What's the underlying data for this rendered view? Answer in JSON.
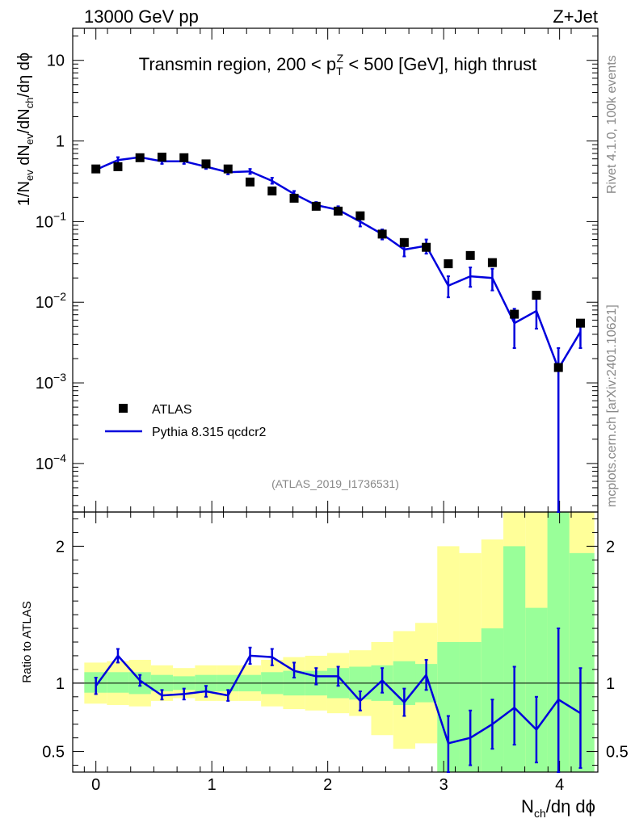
{
  "header": {
    "left": "13000 GeV pp",
    "right": "Z+Jet"
  },
  "side": {
    "rivet": "Rivet 4.1.0,  100k events",
    "mcplots": "mcplots.cern.ch [arXiv:2401.10621]"
  },
  "chart_data": {
    "type": "scatter",
    "title_prefix": "Transmin region, 200 < p",
    "title_sup": "Z",
    "title_sub": "T",
    "title_suffix": " < 500 [GeV], high thrust",
    "analysis_id": "(ATLAS_2019_I1736531)",
    "ylabel_parts": [
      "1/N",
      "ev",
      " dN",
      "ev",
      "/dN",
      "ch",
      "/dη dϕ"
    ],
    "xlabel_parts": [
      "N",
      "ch",
      "/dη dϕ"
    ],
    "ratio_ylabel": "Ratio to ATLAS",
    "xlim": [
      -0.2,
      4.33
    ],
    "ylim_main": [
      2.5e-05,
      25
    ],
    "ylim_ratio": [
      0.35,
      2.25
    ],
    "x_ticks": [
      "0",
      "1",
      "2",
      "3",
      "4"
    ],
    "y_ticks_main": [
      {
        "value": 10,
        "base": "10",
        "exp": ""
      },
      {
        "value": 1,
        "base": "1",
        "exp": ""
      },
      {
        "value": 0.1,
        "base": "10",
        "exp": "−1"
      },
      {
        "value": 0.01,
        "base": "10",
        "exp": "−2"
      },
      {
        "value": 0.001,
        "base": "10",
        "exp": "−3"
      },
      {
        "value": 0.0001,
        "base": "10",
        "exp": "−4"
      }
    ],
    "y_ticks_ratio": [
      "0.5",
      "1",
      "2"
    ],
    "legend": [
      "ATLAS",
      "Pythia 8.315 qcdcr2"
    ],
    "x": [
      0.0,
      0.19,
      0.38,
      0.57,
      0.76,
      0.95,
      1.14,
      1.33,
      1.52,
      1.71,
      1.9,
      2.09,
      2.28,
      2.47,
      2.66,
      2.85,
      3.04,
      3.23,
      3.42,
      3.61,
      3.8,
      3.99,
      4.18
    ],
    "series": [
      {
        "name": "ATLAS",
        "values": [
          0.45,
          0.48,
          0.62,
          0.63,
          0.62,
          0.52,
          0.45,
          0.31,
          0.24,
          0.195,
          0.155,
          0.135,
          0.118,
          0.07,
          0.055,
          0.048,
          0.03,
          0.038,
          0.031,
          0.0071,
          0.0122,
          0.00155,
          0.0055
        ]
      },
      {
        "name": "Pythia 8.315 qcdcr2",
        "values": [
          0.44,
          0.58,
          0.63,
          0.56,
          0.56,
          0.48,
          0.41,
          0.42,
          0.32,
          0.22,
          0.16,
          0.14,
          0.1,
          0.07,
          0.045,
          0.05,
          0.016,
          0.021,
          0.02,
          0.0055,
          0.0078,
          0.0015,
          0.0043
        ],
        "err_low": [
          0.41,
          0.53,
          0.59,
          0.52,
          0.52,
          0.45,
          0.385,
          0.39,
          0.295,
          0.2,
          0.145,
          0.125,
          0.087,
          0.06,
          0.037,
          0.04,
          0.0115,
          0.0155,
          0.014,
          0.0027,
          0.0047,
          2e-05,
          0.0027
        ],
        "err_high": [
          0.47,
          0.63,
          0.67,
          0.6,
          0.6,
          0.51,
          0.435,
          0.45,
          0.35,
          0.24,
          0.175,
          0.155,
          0.113,
          0.08,
          0.053,
          0.06,
          0.021,
          0.027,
          0.026,
          0.0083,
          0.0112,
          0.0027,
          0.0059
        ]
      }
    ],
    "ratio": {
      "values": [
        0.98,
        1.2,
        1.02,
        0.91,
        0.92,
        0.94,
        0.91,
        1.2,
        1.19,
        1.09,
        1.05,
        1.05,
        0.87,
        1.02,
        0.86,
        1.06,
        0.56,
        0.6,
        0.7,
        0.82,
        0.66,
        0.88,
        0.78
      ],
      "err_low": [
        0.92,
        1.15,
        0.98,
        0.88,
        0.88,
        0.9,
        0.87,
        1.14,
        1.13,
        1.04,
        0.99,
        0.98,
        0.8,
        0.93,
        0.76,
        0.95,
        0.35,
        0.4,
        0.52,
        0.55,
        0.42,
        0.35,
        0.38
      ],
      "err_high": [
        1.04,
        1.25,
        1.06,
        0.95,
        0.96,
        0.98,
        0.95,
        1.26,
        1.25,
        1.15,
        1.11,
        1.12,
        0.94,
        1.11,
        0.96,
        1.17,
        0.76,
        0.8,
        0.88,
        1.12,
        0.9,
        1.4,
        1.11
      ]
    },
    "bands": {
      "edges": [
        -0.1,
        0.095,
        0.285,
        0.475,
        0.665,
        0.855,
        1.045,
        1.235,
        1.425,
        1.615,
        1.805,
        1.995,
        2.185,
        2.375,
        2.565,
        2.755,
        2.945,
        3.135,
        3.325,
        3.515,
        3.705,
        3.895,
        4.085,
        4.3
      ],
      "green_low": [
        0.93,
        0.93,
        0.92,
        0.94,
        0.95,
        0.94,
        0.94,
        0.94,
        0.92,
        0.91,
        0.91,
        0.89,
        0.88,
        0.87,
        0.84,
        0.86,
        0.35,
        0.35,
        0.35,
        0.35,
        0.35,
        0.35,
        0.35
      ],
      "green_high": [
        1.08,
        1.08,
        1.08,
        1.06,
        1.05,
        1.06,
        1.06,
        1.06,
        1.08,
        1.09,
        1.09,
        1.11,
        1.12,
        1.13,
        1.16,
        1.14,
        1.3,
        1.3,
        1.4,
        2.0,
        1.55,
        2.25,
        1.95
      ],
      "yellow_low": [
        0.85,
        0.84,
        0.83,
        0.87,
        0.89,
        0.87,
        0.87,
        0.87,
        0.83,
        0.81,
        0.8,
        0.78,
        0.76,
        0.62,
        0.52,
        0.56,
        0.35,
        0.35,
        0.35,
        0.35,
        0.35,
        0.35,
        0.35
      ],
      "yellow_high": [
        1.15,
        1.16,
        1.17,
        1.13,
        1.11,
        1.13,
        1.13,
        1.13,
        1.17,
        1.19,
        1.2,
        1.22,
        1.24,
        1.3,
        1.38,
        1.44,
        2.0,
        1.95,
        2.05,
        2.25,
        2.25,
        2.25,
        2.25
      ]
    },
    "colors": {
      "mc": "#0000dd",
      "data": "#000000",
      "band_inner": "#99ff99",
      "band_outer": "#ffff99",
      "side_text": "#888888"
    }
  }
}
